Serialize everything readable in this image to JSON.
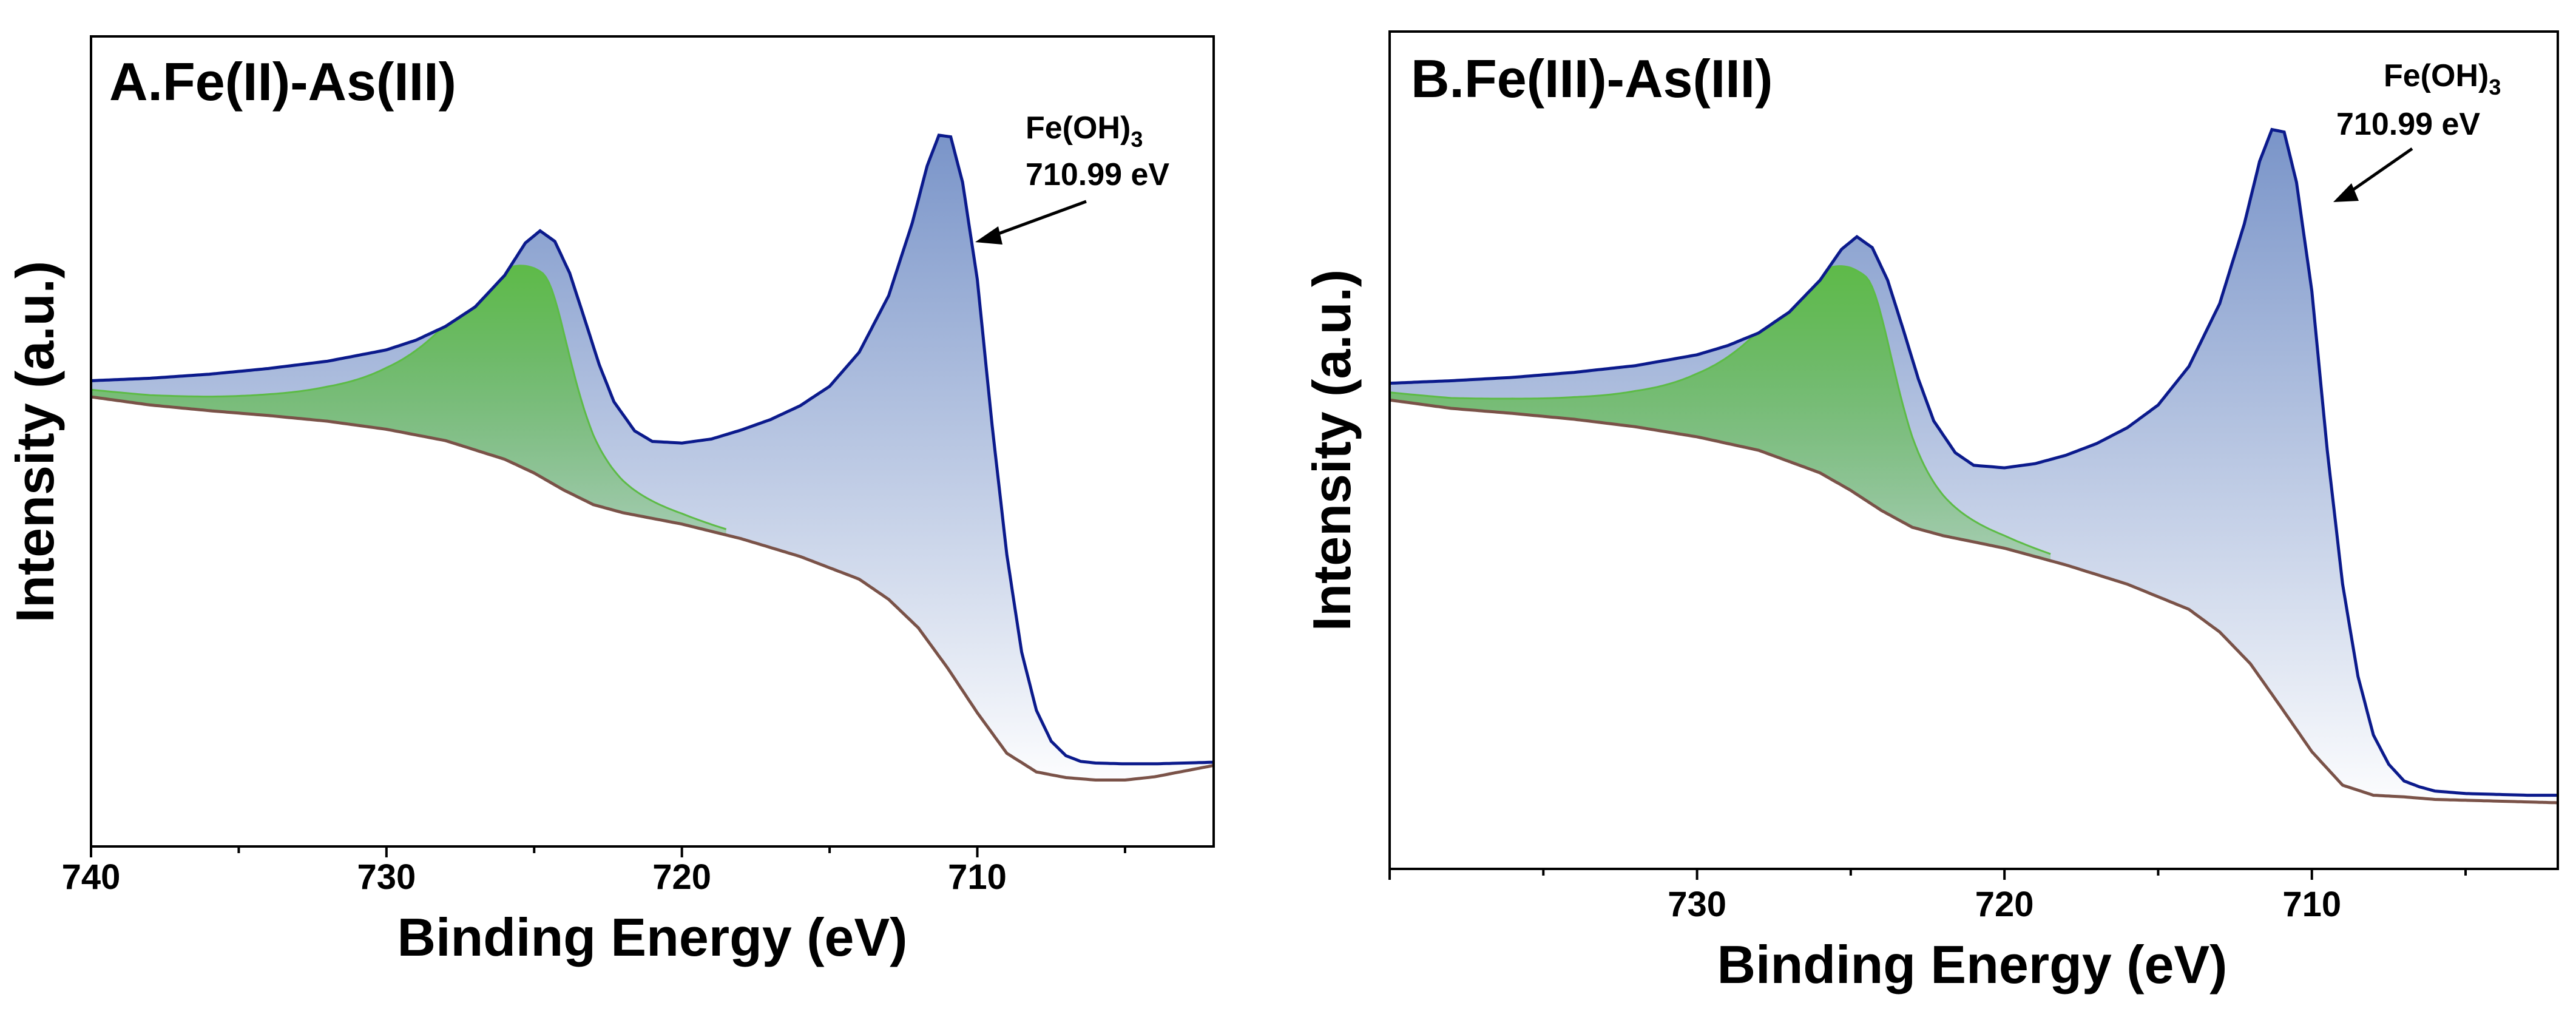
{
  "chart_data": [
    {
      "type": "area",
      "panel_label": "A.Fe(II)-As(III)",
      "xlabel": "Binding Energy (eV)",
      "ylabel": "Intensity (a.u.)",
      "xlim": [
        740,
        702
      ],
      "x_reversed": true,
      "y_ticks_shown": false,
      "ylim": [
        0,
        1
      ],
      "xticks": [
        740,
        730,
        720,
        710
      ],
      "xtick_labels": [
        "740",
        "730",
        "720",
        "710"
      ],
      "grid": false,
      "annotation": {
        "species": "Fe(OH)",
        "subscript": "3",
        "energy_text": "710.99 eV",
        "peak_x": 711.0
      },
      "series": [
        {
          "name": "envelope",
          "x": [
            740,
            738,
            736,
            734,
            732,
            730,
            729,
            728,
            727,
            726,
            725.3,
            724.8,
            724.3,
            723.8,
            723.3,
            722.8,
            722.3,
            721.6,
            721,
            720,
            719,
            718,
            717,
            716,
            715,
            714,
            713,
            712.2,
            711.7,
            711.3,
            710.9,
            710.5,
            710,
            709.5,
            709,
            708.5,
            708,
            707.5,
            707,
            706.5,
            706,
            705,
            704,
            703,
            702
          ],
          "y": [
            0.575,
            0.578,
            0.583,
            0.59,
            0.599,
            0.613,
            0.625,
            0.642,
            0.666,
            0.705,
            0.745,
            0.76,
            0.747,
            0.708,
            0.652,
            0.595,
            0.549,
            0.513,
            0.5,
            0.498,
            0.503,
            0.514,
            0.527,
            0.544,
            0.568,
            0.61,
            0.68,
            0.77,
            0.84,
            0.878,
            0.876,
            0.82,
            0.7,
            0.52,
            0.36,
            0.24,
            0.168,
            0.13,
            0.112,
            0.105,
            0.103,
            0.102,
            0.102,
            0.103,
            0.104
          ]
        },
        {
          "name": "background",
          "x": [
            740,
            738,
            736,
            734,
            732,
            730,
            728,
            726,
            725,
            724,
            723,
            722,
            720,
            718,
            716,
            714,
            713,
            712,
            711,
            710,
            709,
            708,
            707,
            706,
            705,
            704,
            702
          ],
          "y": [
            0.555,
            0.545,
            0.538,
            0.532,
            0.525,
            0.515,
            0.501,
            0.478,
            0.461,
            0.44,
            0.422,
            0.412,
            0.398,
            0.38,
            0.358,
            0.33,
            0.305,
            0.27,
            0.22,
            0.165,
            0.115,
            0.092,
            0.085,
            0.082,
            0.082,
            0.086,
            0.1
          ]
        },
        {
          "name": "Fe2p1/2 component",
          "color": "#5DBB46",
          "peak_x": 724.8,
          "peak_y": 0.71
        },
        {
          "name": "Fe2p3/2 component",
          "color": "#6E8BC4",
          "peak_x": 711.0
        }
      ]
    },
    {
      "type": "area",
      "panel_label": "B.Fe(III)-As(III)",
      "xlabel": "Binding Energy (eV)",
      "ylabel": "Intensity (a.u.)",
      "xlim": [
        740,
        702
      ],
      "x_reversed": true,
      "y_ticks_shown": false,
      "ylim": [
        0,
        1
      ],
      "xticks": [
        730,
        720,
        710
      ],
      "xtick_labels": [
        "730",
        "720",
        "710"
      ],
      "grid": false,
      "annotation": {
        "species": "Fe(OH)",
        "subscript": "3",
        "energy_text": "710.99 eV",
        "peak_x": 711.0
      },
      "series": [
        {
          "name": "envelope",
          "x": [
            740,
            738,
            736,
            734,
            732,
            730,
            729,
            728,
            727,
            726,
            725.3,
            724.8,
            724.3,
            723.8,
            723.3,
            722.8,
            722.3,
            721.6,
            721,
            720,
            719,
            718,
            717,
            716,
            715,
            714,
            713,
            712.2,
            711.7,
            711.3,
            710.9,
            710.5,
            710,
            709.5,
            709,
            708.5,
            708,
            707.5,
            707,
            706.5,
            706,
            705,
            704,
            703,
            702
          ],
          "y": [
            0.58,
            0.583,
            0.587,
            0.593,
            0.601,
            0.614,
            0.625,
            0.64,
            0.665,
            0.703,
            0.74,
            0.755,
            0.742,
            0.703,
            0.645,
            0.585,
            0.535,
            0.497,
            0.482,
            0.479,
            0.484,
            0.494,
            0.508,
            0.527,
            0.554,
            0.6,
            0.675,
            0.77,
            0.845,
            0.883,
            0.88,
            0.82,
            0.69,
            0.5,
            0.34,
            0.23,
            0.16,
            0.125,
            0.105,
            0.098,
            0.093,
            0.09,
            0.089,
            0.088,
            0.088
          ]
        },
        {
          "name": "background",
          "x": [
            740,
            738,
            736,
            734,
            732,
            730,
            728,
            726,
            725,
            724,
            723,
            722,
            720,
            718,
            716,
            714,
            713,
            712,
            711,
            710,
            709,
            708,
            707,
            706,
            705,
            704,
            702
          ],
          "y": [
            0.56,
            0.55,
            0.544,
            0.537,
            0.528,
            0.516,
            0.5,
            0.473,
            0.452,
            0.428,
            0.408,
            0.398,
            0.383,
            0.363,
            0.34,
            0.31,
            0.283,
            0.245,
            0.193,
            0.14,
            0.1,
            0.088,
            0.086,
            0.083,
            0.082,
            0.081,
            0.079
          ]
        },
        {
          "name": "Fe2p1/2 component",
          "color": "#5DBB46",
          "peak_x": 724.6,
          "peak_y": 0.71
        },
        {
          "name": "Fe2p3/2 component",
          "color": "#6E8BC4",
          "peak_x": 711.0
        }
      ]
    }
  ],
  "style": {
    "envelope_color": "#0B1A8C",
    "background_color": "#7A5248",
    "green_fill": "#5DBB46",
    "blue_fill": "#6E8BC4",
    "axis_color": "#000000"
  }
}
